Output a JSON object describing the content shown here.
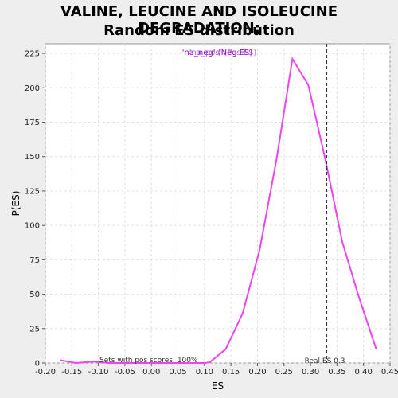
{
  "colors": {
    "background": "#eeeeee",
    "plot_background": "#ffffff",
    "series": "#ee44ee",
    "marker_line": "#333333",
    "legend_a": "#9900cc",
    "legend_b": "#9933cc",
    "grid": "#e0e0e0"
  },
  "chart_data": {
    "type": "line",
    "title_lines": [
      "VALINE, LEUCINE AND ISOLEUCINE DEGRADATION:",
      "Random ES distribution"
    ],
    "xlabel": "ES",
    "ylabel": "P(ES)",
    "xlim": [
      -0.2,
      0.45
    ],
    "ylim": [
      0,
      232
    ],
    "x_ticks": [
      -0.2,
      -0.15,
      -0.1,
      -0.05,
      0.0,
      0.05,
      0.1,
      0.15,
      0.2,
      0.25,
      0.3,
      0.35,
      0.4,
      0.45
    ],
    "x_tick_labels": [
      "-0.20",
      "-0.15",
      "-0.10",
      "-0.05",
      "0.00",
      "0.05",
      "0.10",
      "0.15",
      "0.20",
      "0.25",
      "0.30",
      "0.35",
      "0.40",
      "0.45"
    ],
    "y_ticks": [
      0,
      25,
      50,
      75,
      100,
      125,
      150,
      175,
      200,
      225
    ],
    "y_tick_labels": [
      "0",
      "25",
      "50",
      "75",
      "100",
      "125",
      "150",
      "175",
      "200",
      "225"
    ],
    "grid": true,
    "legend": {
      "placement": "top-center",
      "entry_a": "'na_neg' (Neg ES)",
      "entry_b": "'na_pos' (Pos ES)"
    },
    "series": [
      {
        "x": [
          -0.172,
          -0.142,
          -0.11,
          -0.08,
          -0.05,
          -0.02,
          0.01,
          0.04,
          0.07,
          0.1,
          0.11,
          0.14,
          0.172,
          0.204,
          0.236,
          0.266,
          0.296,
          0.328,
          0.36,
          0.392,
          0.424
        ],
        "y": [
          2,
          0,
          1,
          0,
          0,
          0,
          0,
          0,
          0,
          0,
          0.5,
          10,
          36,
          82,
          148,
          221,
          202,
          148,
          88,
          47,
          10
        ]
      }
    ],
    "real_es": 0.33,
    "annotations": {
      "sets_with_pos": "Sets with pos scores: 100%",
      "real_es_label": "Real ES 0.3"
    }
  }
}
